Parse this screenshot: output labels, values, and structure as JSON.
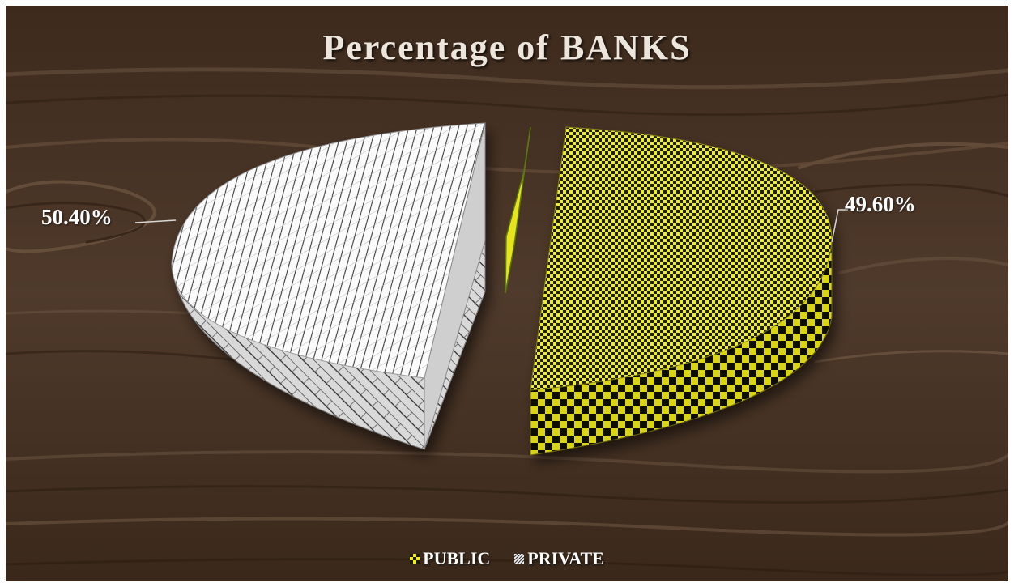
{
  "chart_data": {
    "type": "pie",
    "title": "Percentage of BANKS",
    "categories": [
      "PUBLIC",
      "PRIVATE"
    ],
    "values": [
      49.6,
      50.4
    ],
    "data_labels": [
      "49.60%",
      "50.40%"
    ],
    "legend_position": "bottom",
    "style": "3d-exploded"
  },
  "colors": {
    "public_primary": "#f2ee1a",
    "public_secondary": "#1a1a0a",
    "private_primary": "#ffffff",
    "private_secondary": "#3a3a3a",
    "background_wood": "#4a3526"
  },
  "legend": [
    {
      "label": "PUBLIC"
    },
    {
      "label": "PRIVATE"
    }
  ]
}
